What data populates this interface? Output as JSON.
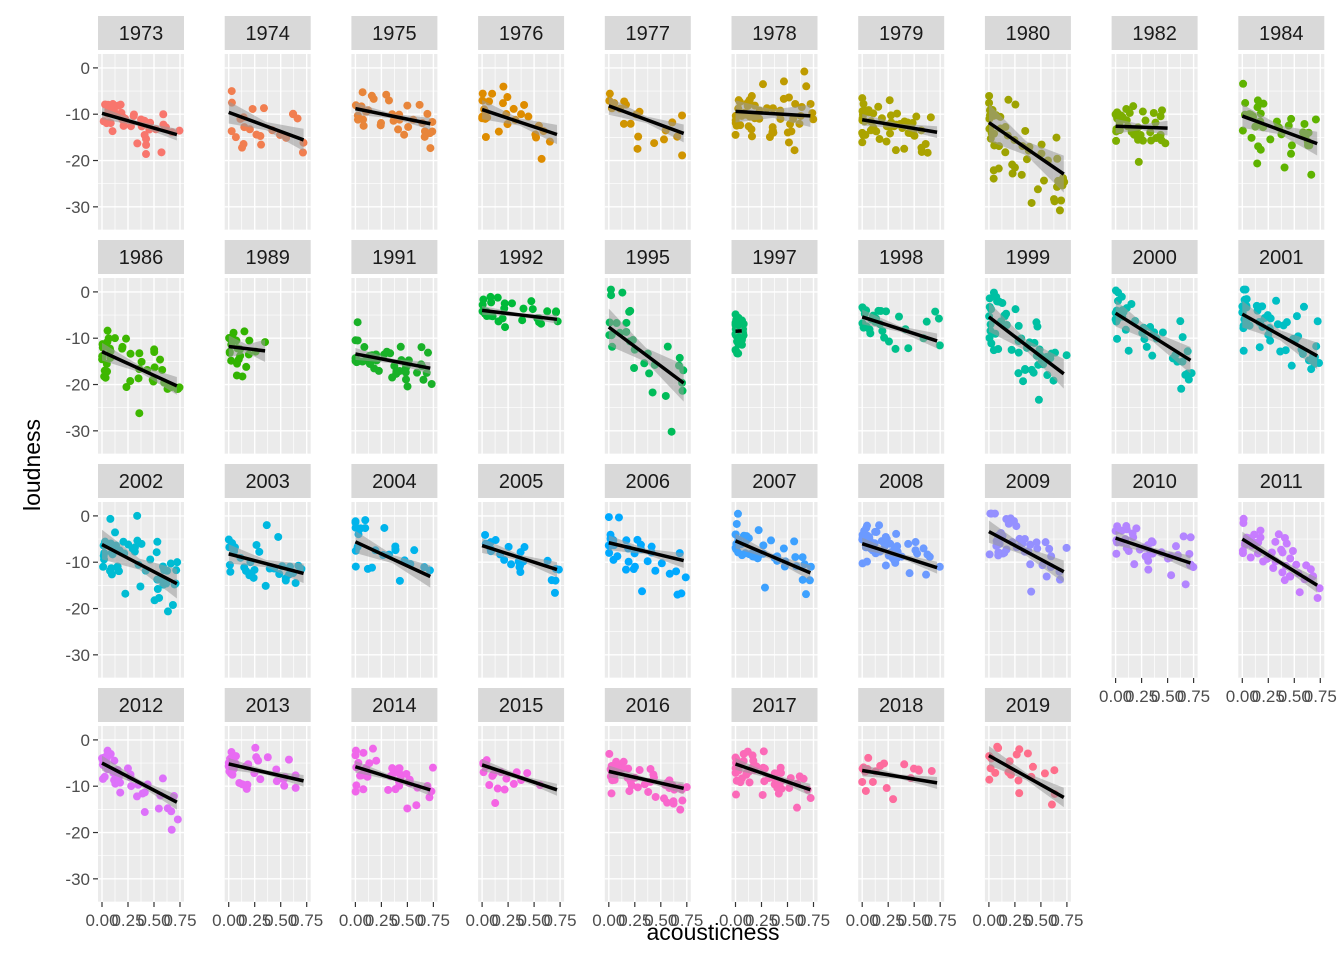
{
  "chart_data": {
    "type": "scatter",
    "layout": "faceted-small-multiples",
    "facet_variable": "year",
    "xlabel": "acousticness",
    "ylabel": "loudness",
    "xlim": [
      0,
      0.75
    ],
    "ylim": [
      -35,
      3
    ],
    "x_ticks": [
      0,
      0.25,
      0.5,
      0.75
    ],
    "x_tick_labels": [
      "0.00",
      "0.25",
      "0.50",
      "0.75"
    ],
    "y_ticks": [
      0,
      -10,
      -20,
      -30
    ],
    "y_tick_labels": [
      "0",
      "-10",
      "-20",
      "-30"
    ],
    "grid": true,
    "panel_background": "#ebebeb",
    "strip_background": "#d9d9d9",
    "trend_line": "linear fit with grey confidence band (black line)",
    "facets": [
      {
        "year": "1973",
        "color": "#F8766D",
        "fit": [
          -9.8,
          -14.6
        ],
        "ci": 0.8
      },
      {
        "year": "1974",
        "color": "#F17E50",
        "fit": [
          -9.6,
          -15.8
        ],
        "ci": 1.5
      },
      {
        "year": "1975",
        "color": "#E8853A",
        "fit": [
          -8.8,
          -12.2
        ],
        "ci": 0.8
      },
      {
        "year": "1976",
        "color": "#DE8C00",
        "fit": [
          -9.0,
          -14.6
        ],
        "ci": 1.3
      },
      {
        "year": "1977",
        "color": "#D09400",
        "fit": [
          -8.2,
          -14.4
        ],
        "ci": 1.2
      },
      {
        "year": "1978",
        "color": "#BE9B00",
        "fit": [
          -9.4,
          -10.4
        ],
        "ci": 1.5
      },
      {
        "year": "1979",
        "color": "#ABA300",
        "fit": [
          -11.2,
          -14.0
        ],
        "ci": 0.8
      },
      {
        "year": "1980",
        "color": "#9DA200",
        "fit": [
          -11.8,
          -23.4
        ],
        "ci": 2.5
      },
      {
        "year": "1982",
        "color": "#7CAE00",
        "fit": [
          -12.6,
          -13.2
        ],
        "ci": 1.0
      },
      {
        "year": "1984",
        "color": "#5EB300",
        "fit": [
          -10.4,
          -16.6
        ],
        "ci": 1.6
      },
      {
        "year": "1986",
        "color": "#3EB700",
        "fit": [
          -12.9,
          -20.6
        ],
        "ci": 1.2
      },
      {
        "year": "1989",
        "color": "#31B300",
        "fit": [
          -11.8,
          -13.8
        ],
        "ci": 1.5
      },
      {
        "year": "1991",
        "color": "#19B128",
        "fit": [
          -13.4,
          -16.6
        ],
        "ci": 0.8
      },
      {
        "year": "1992",
        "color": "#00BA38",
        "fit": [
          -4.0,
          -6.0
        ],
        "ci": 0.6
      },
      {
        "year": "1995",
        "color": "#00BC59",
        "fit": [
          -7.6,
          -20.2
        ],
        "ci": 2.5
      },
      {
        "year": "1997",
        "color": "#00BE70",
        "fit": [
          -8.5,
          -7.5
        ],
        "ci": 0.5
      },
      {
        "year": "1998",
        "color": "#00C08B",
        "fit": [
          -5.4,
          -10.8
        ],
        "ci": 1.0
      },
      {
        "year": "1999",
        "color": "#00C0A3",
        "fit": [
          -5.4,
          -18.2
        ],
        "ci": 2.0
      },
      {
        "year": "2000",
        "color": "#00BFB3",
        "fit": [
          -4.6,
          -15.2
        ],
        "ci": 1.8
      },
      {
        "year": "2001",
        "color": "#00BFC4",
        "fit": [
          -4.8,
          -14.2
        ],
        "ci": 1.8
      },
      {
        "year": "2002",
        "color": "#00BCD3",
        "fit": [
          -6.2,
          -15.0
        ],
        "ci": 2.0
      },
      {
        "year": "2003",
        "color": "#00B8E0",
        "fit": [
          -8.2,
          -12.6
        ],
        "ci": 1.3
      },
      {
        "year": "2004",
        "color": "#00B4EB",
        "fit": [
          -5.6,
          -13.4
        ],
        "ci": 1.5
      },
      {
        "year": "2005",
        "color": "#00AEF5",
        "fit": [
          -6.4,
          -11.8
        ],
        "ci": 1.0
      },
      {
        "year": "2006",
        "color": "#00A9FF",
        "fit": [
          -5.8,
          -9.8
        ],
        "ci": 1.0
      },
      {
        "year": "2007",
        "color": "#3DA1FF",
        "fit": [
          -5.4,
          -12.6
        ],
        "ci": 1.0
      },
      {
        "year": "2008",
        "color": "#6C9AFF",
        "fit": [
          -6.0,
          -11.4
        ],
        "ci": 0.8
      },
      {
        "year": "2009",
        "color": "#9590FF",
        "fit": [
          -3.4,
          -12.4
        ],
        "ci": 1.5
      },
      {
        "year": "2010",
        "color": "#B385FF",
        "fit": [
          -4.8,
          -10.4
        ],
        "ci": 1.0
      },
      {
        "year": "2011",
        "color": "#C77CFF",
        "fit": [
          -5.0,
          -15.4
        ],
        "ci": 1.0
      },
      {
        "year": "2012",
        "color": "#DD71FA",
        "fit": [
          -5.0,
          -13.8
        ],
        "ci": 1.0
      },
      {
        "year": "2013",
        "color": "#E86BF3",
        "fit": [
          -5.2,
          -9.0
        ],
        "ci": 0.8
      },
      {
        "year": "2014",
        "color": "#F066EA",
        "fit": [
          -5.8,
          -11.0
        ],
        "ci": 0.8
      },
      {
        "year": "2015",
        "color": "#F564E3",
        "fit": [
          -5.4,
          -11.0
        ],
        "ci": 0.8
      },
      {
        "year": "2016",
        "color": "#F967CC",
        "fit": [
          -6.8,
          -10.6
        ],
        "ci": 0.8
      },
      {
        "year": "2017",
        "color": "#FB6AB8",
        "fit": [
          -5.2,
          -11.0
        ],
        "ci": 0.8
      },
      {
        "year": "2018",
        "color": "#FD6C9E",
        "fit": [
          -6.6,
          -9.4
        ],
        "ci": 0.8
      },
      {
        "year": "2019",
        "color": "#FE6E8B",
        "fit": [
          -3.4,
          -12.8
        ],
        "ci": 1.3
      }
    ]
  }
}
